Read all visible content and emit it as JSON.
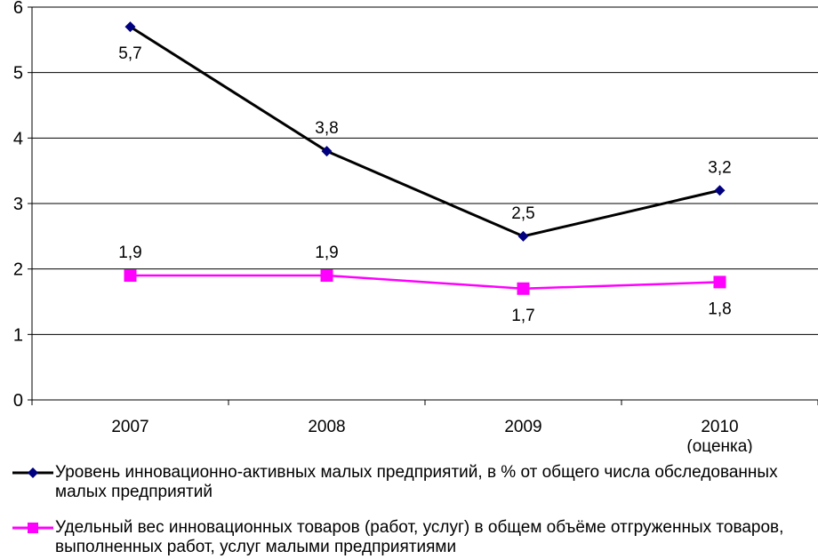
{
  "chart_data": {
    "type": "line",
    "categories": [
      "2007",
      "2008",
      "2009",
      "2010\n(оценка)"
    ],
    "ylim": [
      0,
      6
    ],
    "yticks": [
      0,
      1,
      2,
      3,
      4,
      5,
      6
    ],
    "grid": true,
    "legend_position": "bottom",
    "series": [
      {
        "name": "Уровень инновационно-активных малых предприятий, в % от общего числа обследованных малых предприятий",
        "values": [
          5.7,
          3.8,
          2.5,
          3.2
        ],
        "labels": [
          "5,7",
          "3,8",
          "2,5",
          "3,2"
        ],
        "color": "#000000",
        "marker": "diamond",
        "marker_color": "#000080"
      },
      {
        "name": "Удельный вес инновационных товаров (работ, услуг) в общем объёме отгруженных товаров, выполненных работ, услуг малыми предприятиями",
        "values": [
          1.9,
          1.9,
          1.7,
          1.8
        ],
        "labels": [
          "1,9",
          "1,9",
          "1,7",
          "1,8"
        ],
        "color": "#ff00ff",
        "marker": "square",
        "marker_color": "#ff00ff"
      }
    ]
  }
}
